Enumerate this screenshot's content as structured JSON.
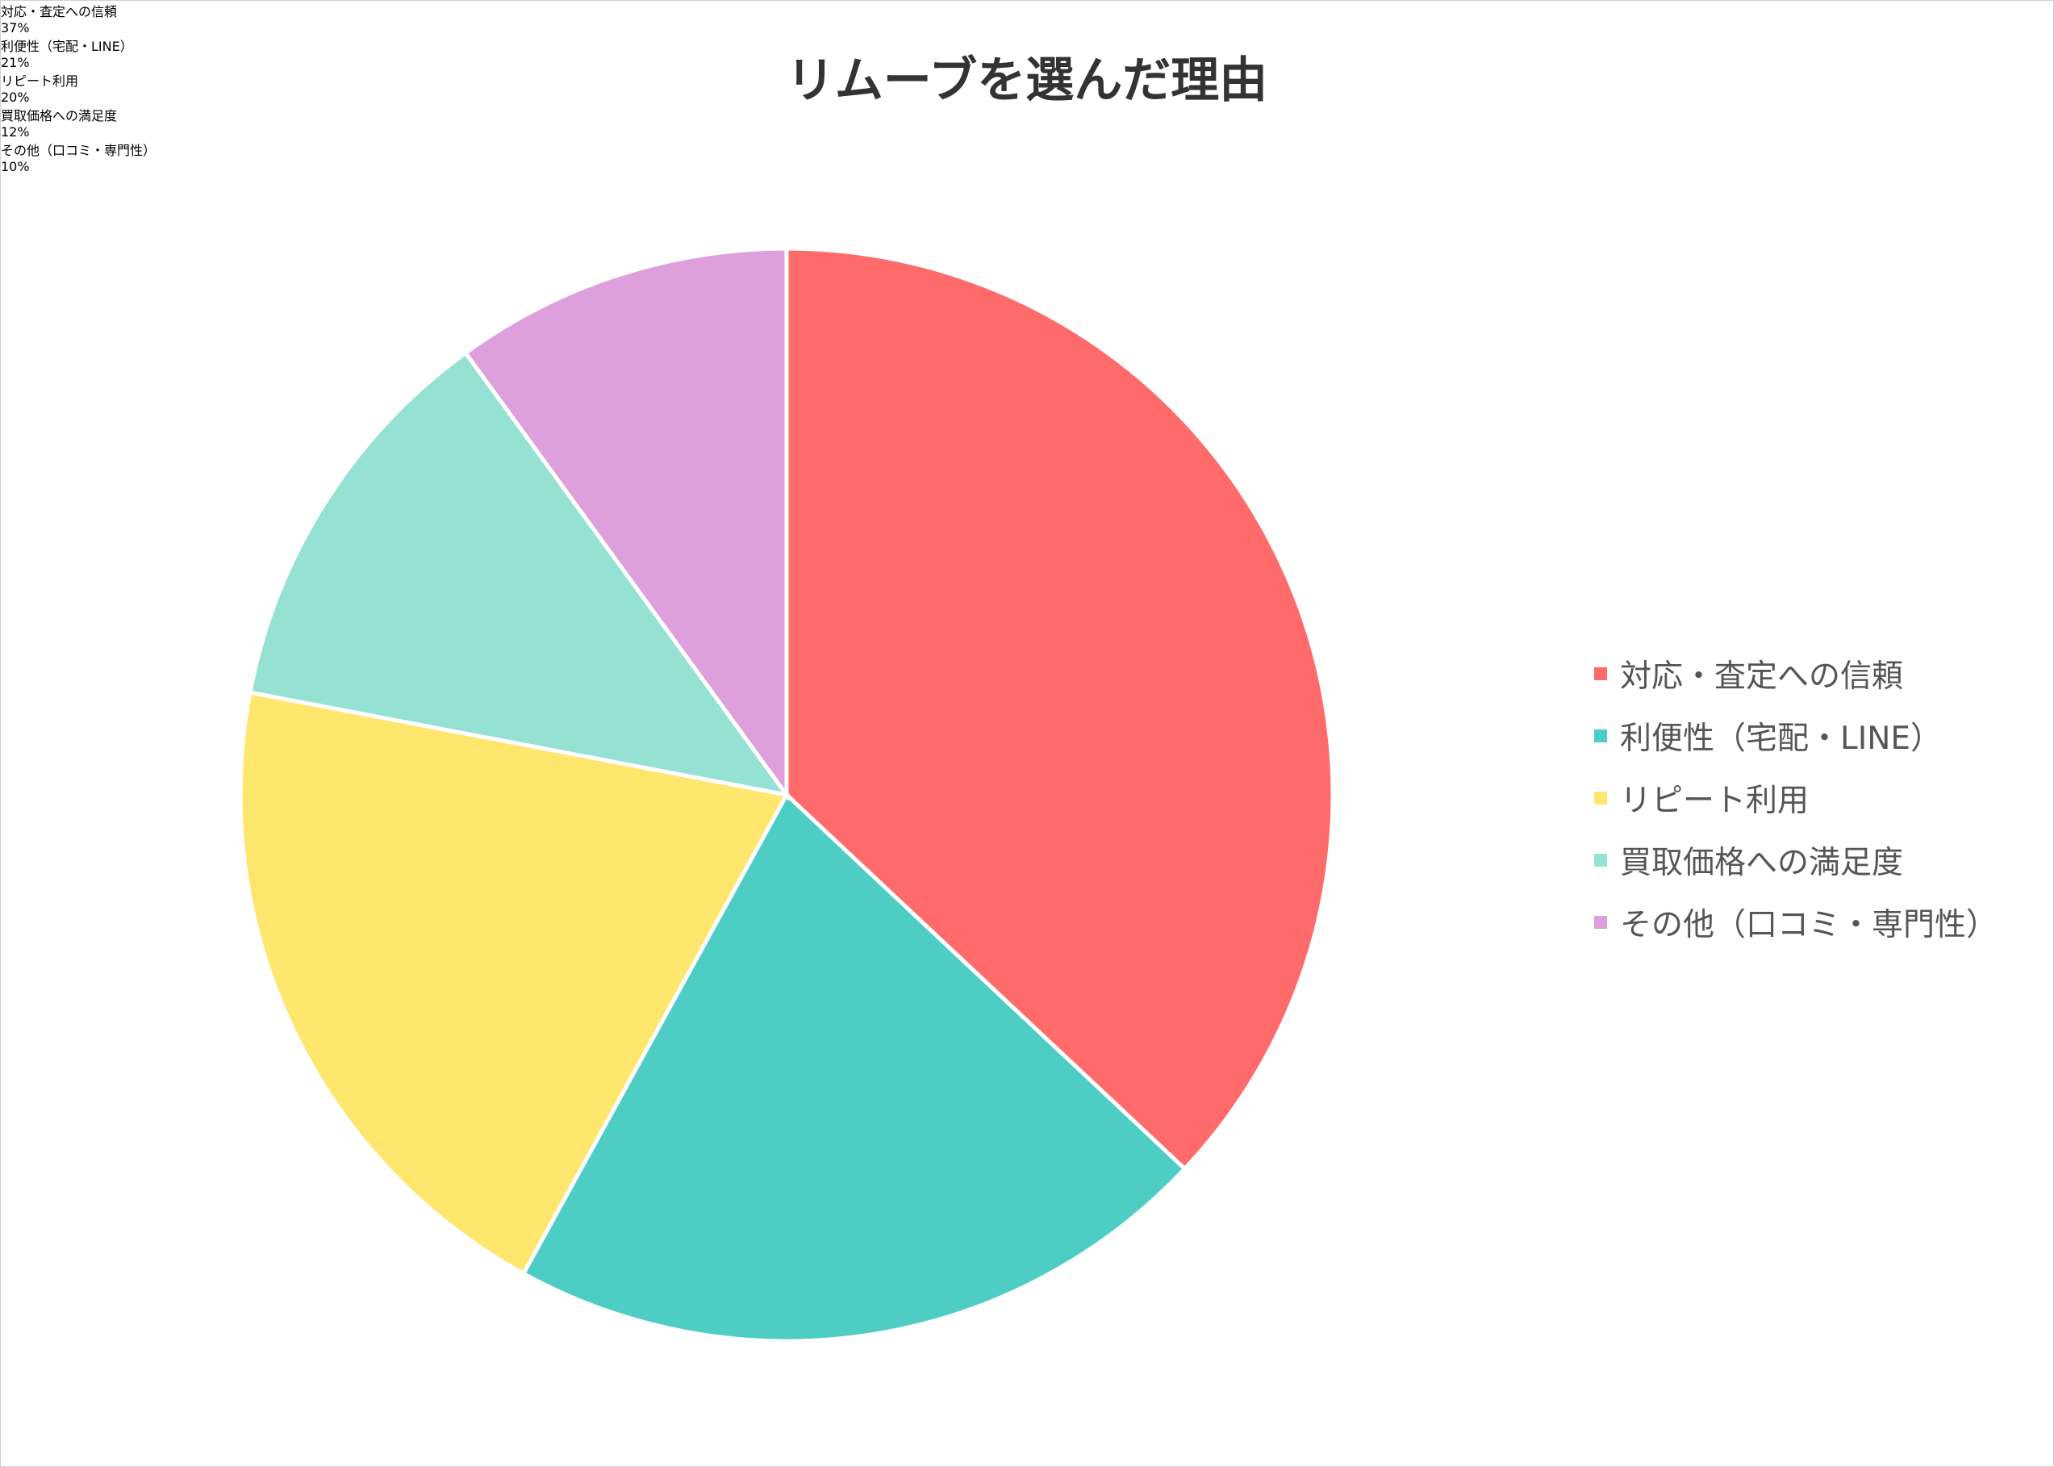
{
  "chart_data": {
    "type": "pie",
    "title": "リムーブを選んだ理由",
    "categories": [
      "対応・査定への信頼",
      "利便性（宅配・LINE）",
      "リピート利用",
      "買取価格への満足度",
      "その他（口コミ・専門性）"
    ],
    "values": [
      37,
      21,
      20,
      12,
      10
    ],
    "value_labels": [
      "37%",
      "21%",
      "20%",
      "12%",
      "10%"
    ],
    "colors": [
      "#ff6b6b",
      "#4ecdc4",
      "#ffe66d",
      "#95e1d3",
      "#dda0dd"
    ],
    "legend": "right"
  }
}
